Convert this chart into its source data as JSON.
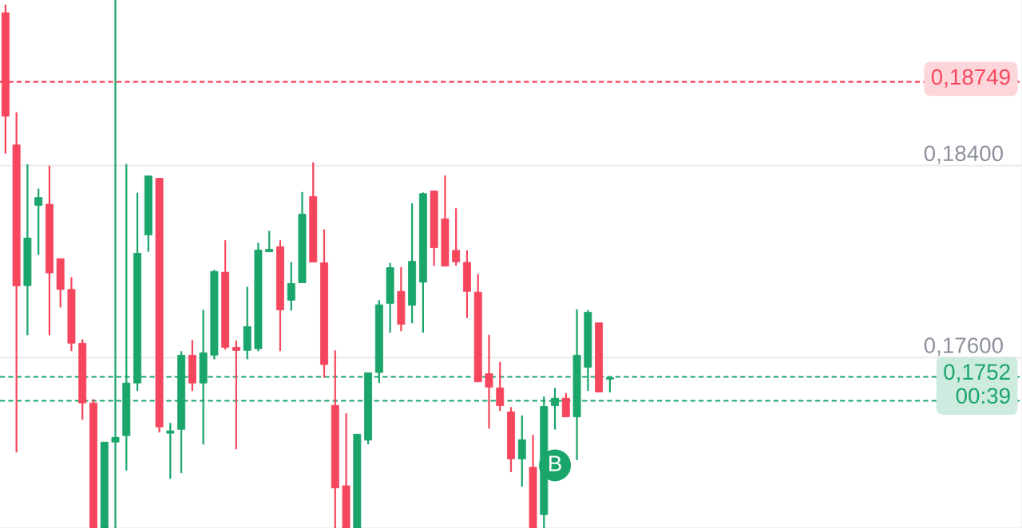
{
  "chart_data": {
    "type": "candlestick",
    "categories": [
      null,
      null,
      null,
      null,
      null,
      null,
      null,
      null,
      null,
      null,
      null,
      null,
      null,
      null,
      null,
      null,
      null,
      null,
      null,
      null,
      null,
      null,
      null,
      null,
      null,
      null,
      null,
      null,
      null,
      null,
      null,
      null,
      null,
      null,
      null,
      null,
      null,
      null,
      null,
      null,
      null,
      null,
      null,
      null,
      null,
      null,
      null,
      null,
      null,
      null,
      null,
      null,
      null,
      null,
      null,
      null,
      null,
      null,
      null,
      null,
      null,
      null,
      null,
      null,
      null,
      null,
      null,
      null,
      null,
      null,
      null,
      null,
      null,
      null,
      null,
      null,
      null,
      null,
      null,
      null,
      null,
      null,
      null,
      null,
      null,
      null,
      null,
      null,
      null,
      null,
      null,
      null,
      null
    ],
    "ohlc": [
      [
        0.19037,
        0.19071,
        0.1845,
        0.18606
      ],
      [
        0.18486,
        0.18622,
        0.17205,
        0.17899
      ],
      [
        0.179,
        0.18405,
        0.17693,
        0.18098
      ],
      [
        0.18234,
        0.18304,
        0.18028,
        0.18267
      ],
      [
        0.18239,
        0.184,
        0.17693,
        0.17953
      ],
      [
        0.18012,
        0.18012,
        0.17809,
        0.17884
      ],
      [
        0.17884,
        0.17935,
        0.17627,
        0.1766
      ],
      [
        0.1766,
        0.17676,
        0.17341,
        0.17411
      ],
      [
        0.17411,
        0.17427,
        0.1689,
        0.1689
      ],
      [
        0.1689,
        0.17248,
        0.1689,
        0.17248
      ],
      [
        0.17248,
        0.1909,
        0.1689,
        0.17268
      ],
      [
        0.17275,
        0.18407,
        0.17129,
        0.17494
      ],
      [
        0.17494,
        0.18287,
        0.17461,
        0.18035
      ],
      [
        0.18111,
        0.18357,
        0.18041,
        0.18357
      ],
      [
        0.18347,
        0.18347,
        0.17288,
        0.17311
      ],
      [
        0.17285,
        0.17328,
        0.17095,
        0.17295
      ],
      [
        0.17301,
        0.17627,
        0.17119,
        0.1761
      ],
      [
        0.1761,
        0.17673,
        0.17461,
        0.17494
      ],
      [
        0.17494,
        0.17799,
        0.17238,
        0.1762
      ],
      [
        0.1761,
        0.17965,
        0.17593,
        0.17959
      ],
      [
        0.17956,
        0.18089,
        0.17633,
        0.17643
      ],
      [
        0.17643,
        0.17671,
        0.17218,
        0.1763
      ],
      [
        0.1763,
        0.17895,
        0.17593,
        0.17729
      ],
      [
        0.17637,
        0.18078,
        0.17627,
        0.18048
      ],
      [
        0.18041,
        0.18128,
        0.18041,
        0.18051
      ],
      [
        0.18062,
        0.18089,
        0.17627,
        0.17799
      ],
      [
        0.17839,
        0.17998,
        0.17796,
        0.17909
      ],
      [
        0.17912,
        0.1829,
        0.17912,
        0.18198
      ],
      [
        0.18271,
        0.18414,
        0.17998,
        0.17998
      ],
      [
        0.17995,
        0.18134,
        0.17517,
        0.17571
      ],
      [
        0.17401,
        0.1763,
        0.1689,
        0.17057
      ],
      [
        0.17066,
        0.17368,
        0.1689,
        0.1689
      ],
      [
        0.1689,
        0.17281,
        0.1689,
        0.17281
      ],
      [
        0.17256,
        0.17537,
        0.17239,
        0.17537
      ],
      [
        0.17538,
        0.17839,
        0.17494,
        0.1782
      ],
      [
        0.17826,
        0.17995,
        0.17704,
        0.17975
      ],
      [
        0.17876,
        0.17977,
        0.1771,
        0.17739
      ],
      [
        0.17818,
        0.18243,
        0.17743,
        0.18001
      ],
      [
        0.17914,
        0.18288,
        0.17704,
        0.18283
      ],
      [
        0.18294,
        0.18297,
        0.17982,
        0.18058
      ],
      [
        0.18178,
        0.18359,
        0.17981,
        0.17981
      ],
      [
        0.18047,
        0.18222,
        0.17983,
        0.17999
      ],
      [
        0.17997,
        0.18047,
        0.17765,
        0.17876
      ],
      [
        0.17873,
        0.17948,
        0.17499,
        0.17499
      ],
      [
        0.17533,
        0.17695,
        0.17304,
        0.17477
      ],
      [
        0.17474,
        0.17582,
        0.17378,
        0.174
      ],
      [
        0.17374,
        0.17394,
        0.17123,
        0.17178
      ],
      [
        0.17178,
        0.17359,
        0.17062,
        0.17258
      ],
      [
        0.17143,
        0.17278,
        0.1689,
        0.1689
      ],
      [
        0.16946,
        0.17438,
        0.1689,
        0.17397
      ],
      [
        0.174,
        0.17474,
        0.173,
        0.17431
      ],
      [
        0.17431,
        0.17452,
        0.17353,
        0.17353
      ],
      [
        0.17353,
        0.17801,
        0.17173,
        0.1761
      ],
      [
        0.1756,
        0.17798,
        0.17461,
        0.17789
      ],
      [
        0.17745,
        0.17745,
        0.17457,
        0.17457
      ],
      [
        0.1751,
        0.17516,
        0.17455,
        0.17516
      ],
      null,
      null,
      null,
      null,
      null,
      null,
      null,
      null,
      null,
      null,
      null,
      null,
      null,
      null,
      null,
      null,
      null,
      null,
      null,
      null,
      null,
      null,
      null,
      null,
      null,
      null,
      null,
      null,
      null,
      null,
      null,
      null,
      null,
      null,
      null,
      null,
      null
    ],
    "colors": [
      "#f6465d",
      "#f6465d",
      "#1aa56b",
      "#1aa56b",
      "#f6465d",
      "#f6465d",
      "#f6465d",
      "#f6465d",
      "#f6465d",
      "#1aa56b",
      "#1aa56b",
      "#1aa56b",
      "#1aa56b",
      "#1aa56b",
      "#f6465d",
      "#1aa56b",
      "#1aa56b",
      "#f6465d",
      "#1aa56b",
      "#1aa56b",
      "#f6465d",
      "#f6465d",
      "#1aa56b",
      "#1aa56b",
      "#1aa56b",
      "#f6465d",
      "#1aa56b",
      "#1aa56b",
      "#f6465d",
      "#f6465d",
      "#f6465d",
      "#f6465d",
      "#1aa56b",
      "#1aa56b",
      "#1aa56b",
      "#1aa56b",
      "#f6465d",
      "#1aa56b",
      "#1aa56b",
      "#f6465d",
      "#f6465d",
      "#f6465d",
      "#f6465d",
      "#f6465d",
      "#f6465d",
      "#f6465d",
      "#f6465d",
      "#1aa56b",
      "#f6465d",
      "#1aa56b",
      "#1aa56b",
      "#f6465d",
      "#1aa56b",
      "#1aa56b",
      "#f6465d",
      "#1aa56b",
      null,
      null,
      null,
      null,
      null,
      null,
      null,
      null,
      null,
      null,
      null,
      null,
      null,
      null,
      null,
      null,
      null,
      null,
      null,
      null,
      null,
      null,
      null,
      null,
      null,
      null,
      null,
      null,
      null,
      null,
      null,
      null,
      null,
      null,
      null,
      null,
      null
    ],
    "series": [
      {
        "type": "scatter",
        "color": "#1aa56b",
        "marker": "circle",
        "values": [
          null,
          null,
          null,
          null,
          null,
          null,
          null,
          null,
          null,
          null,
          null,
          null,
          null,
          null,
          null,
          null,
          null,
          null,
          null,
          null,
          null,
          null,
          null,
          null,
          null,
          null,
          null,
          null,
          null,
          null,
          null,
          null,
          null,
          null,
          null,
          null,
          null,
          null,
          null,
          null,
          null,
          null,
          null,
          null,
          null,
          null,
          null,
          null,
          null,
          null,
          0.17151,
          null,
          null,
          null,
          null,
          null,
          null,
          null,
          null,
          null,
          null,
          null,
          null,
          null,
          null,
          null,
          null,
          null,
          null,
          null,
          null,
          null,
          null,
          null,
          null,
          null,
          null,
          null,
          null,
          null,
          null,
          null,
          null,
          null,
          null,
          null,
          null,
          null,
          null,
          null,
          null,
          null,
          null
        ],
        "value_labels": [
          null,
          null,
          null,
          null,
          null,
          null,
          null,
          null,
          null,
          null,
          null,
          null,
          null,
          null,
          null,
          null,
          null,
          null,
          null,
          null,
          null,
          null,
          null,
          null,
          null,
          null,
          null,
          null,
          null,
          null,
          null,
          null,
          null,
          null,
          null,
          null,
          null,
          null,
          null,
          null,
          null,
          null,
          null,
          null,
          null,
          null,
          null,
          null,
          null,
          null,
          "B",
          null,
          null,
          null,
          null,
          null,
          null,
          null,
          null,
          null,
          null,
          null,
          null,
          null,
          null,
          null,
          null,
          null,
          null,
          null,
          null,
          null,
          null,
          null,
          null,
          null,
          null,
          null,
          null,
          null,
          null,
          null,
          null,
          null,
          null,
          null,
          null,
          null,
          null,
          null,
          null,
          null,
          null
        ]
      }
    ],
    "ylim": [
      0.1689,
      0.1909
    ],
    "yticks": [
      {
        "value": 0.184,
        "label": "0,18400"
      },
      {
        "value": 0.176,
        "label": "0,17600"
      }
    ],
    "grid": "y",
    "tick_labels": "y",
    "ref_lines": [
      {
        "axis": "y",
        "value": 0.18749,
        "label": "0,18749",
        "color": "#f6465d",
        "line_style": "dashed"
      },
      {
        "axis": "y",
        "value": 0.1742,
        "color": "#1aa56b",
        "line_style": "dashed"
      },
      {
        "axis": "y",
        "value": 0.1752,
        "label": "0,1752\n00:39",
        "color": "#1aa56b",
        "line_style": "dashed"
      }
    ]
  }
}
